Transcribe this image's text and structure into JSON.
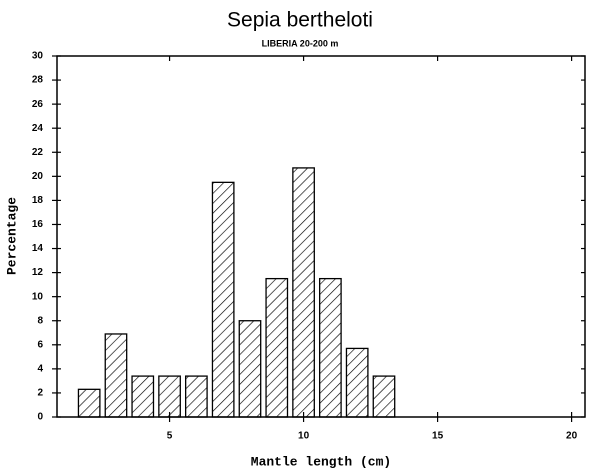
{
  "chart_data": {
    "type": "bar",
    "title": "Sepia bertheloti",
    "subtitle": "LIBERIA 20-200 m",
    "x_label": "Mantle length (cm)",
    "y_label": "Percentage",
    "x": [
      2,
      3,
      4,
      5,
      6,
      7,
      8,
      9,
      10,
      11,
      12,
      13
    ],
    "values": [
      2.3,
      6.9,
      3.4,
      3.4,
      3.4,
      19.5,
      8.0,
      11.5,
      20.7,
      11.5,
      5.7,
      3.4
    ],
    "color": "#000000",
    "xlim": [
      0.8,
      20.5
    ],
    "xticks": [
      5,
      10,
      15,
      20
    ],
    "ylim": [
      0,
      30
    ],
    "yticks": [
      0,
      2,
      4,
      6,
      8,
      10,
      12,
      14,
      16,
      18,
      20,
      22,
      24,
      26,
      28,
      30
    ]
  }
}
